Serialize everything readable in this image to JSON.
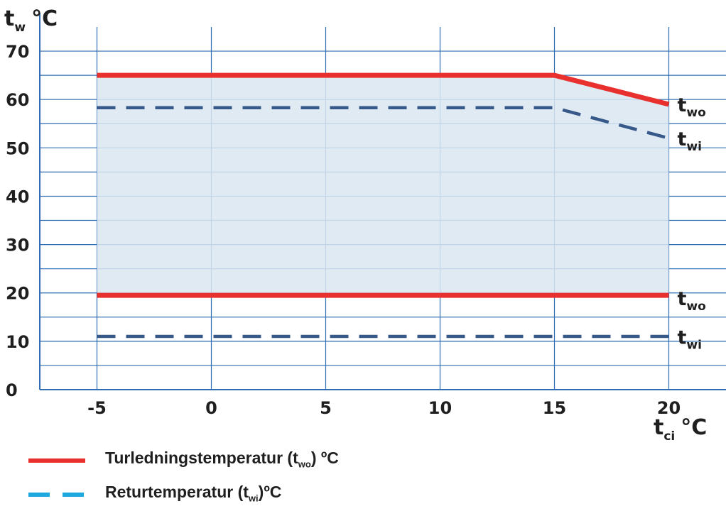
{
  "chart_data": {
    "type": "line",
    "ylabel_main": "t",
    "ylabel_sub": "w",
    "ylabel_unit": "°C",
    "xlabel_main": "t",
    "xlabel_sub": "ci",
    "xlabel_unit": "°C",
    "xlim": [
      -7.5,
      22.5
    ],
    "ylim": [
      0,
      75
    ],
    "x_ticks": [
      -5,
      0,
      5,
      10,
      15,
      20
    ],
    "y_ticks": [
      0,
      10,
      20,
      30,
      40,
      50,
      60,
      70
    ],
    "grid": true,
    "area": {
      "x": [
        -5,
        15,
        20,
        20,
        -5
      ],
      "y": [
        65,
        65,
        59,
        19.5,
        19.5
      ]
    },
    "series": [
      {
        "key": "wo_upper",
        "style": "solid",
        "x": [
          -5,
          15,
          20
        ],
        "y": [
          65,
          65,
          59
        ]
      },
      {
        "key": "wi_upper",
        "style": "dashed",
        "x": [
          -5,
          15,
          20
        ],
        "y": [
          58.3,
          58.3,
          52
        ]
      },
      {
        "key": "wo_lower",
        "style": "solid",
        "x": [
          -5,
          20
        ],
        "y": [
          19.5,
          19.5
        ]
      },
      {
        "key": "wi_lower",
        "style": "dashed",
        "x": [
          -5,
          20
        ],
        "y": [
          11,
          11
        ]
      }
    ],
    "line_labels": [
      {
        "main": "t",
        "sub": "wo",
        "x": 20,
        "y": 57.5
      },
      {
        "main": "t",
        "sub": "wi",
        "x": 20,
        "y": 50.5
      },
      {
        "main": "t",
        "sub": "wo",
        "x": 20,
        "y": 17.5
      },
      {
        "main": "t",
        "sub": "wi",
        "x": 20,
        "y": 9.5
      }
    ],
    "legend": [
      {
        "text_before": "Turledningstemperatur (t",
        "sub": "wo",
        "text_after": ") ºC",
        "style": "solid"
      },
      {
        "text_before": "Returtemperatur (t",
        "sub": "wi",
        "text_after": ")ºC",
        "style": "dashed"
      }
    ]
  },
  "colors": {
    "grid": "#2e6db4",
    "area_fill": "#dbe6f1",
    "solid_line": "#e8312f",
    "dashed_line": "#36598a",
    "legend_dashed": "#1ea8e0",
    "text": "#1f1f1f"
  }
}
